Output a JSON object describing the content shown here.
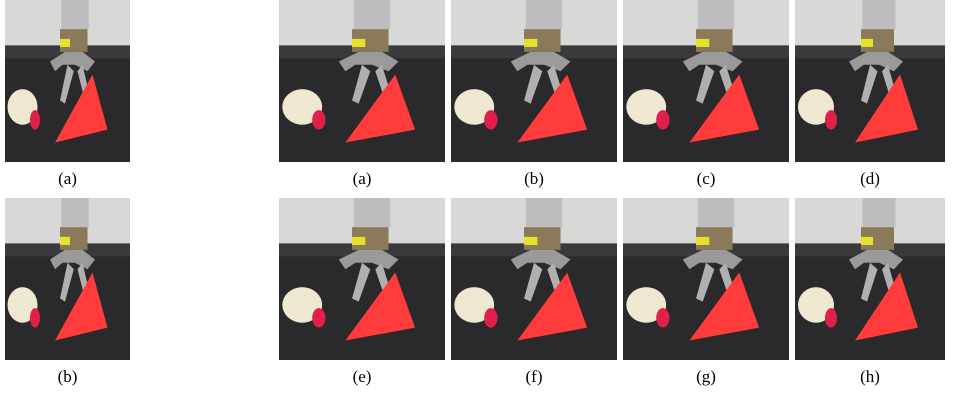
{
  "left": {
    "panels": [
      "(a)",
      "(b)"
    ]
  },
  "right": {
    "panels": [
      "(a)",
      "(b)",
      "(c)",
      "(d)",
      "(e)",
      "(f)",
      "(g)",
      "(h)"
    ]
  }
}
